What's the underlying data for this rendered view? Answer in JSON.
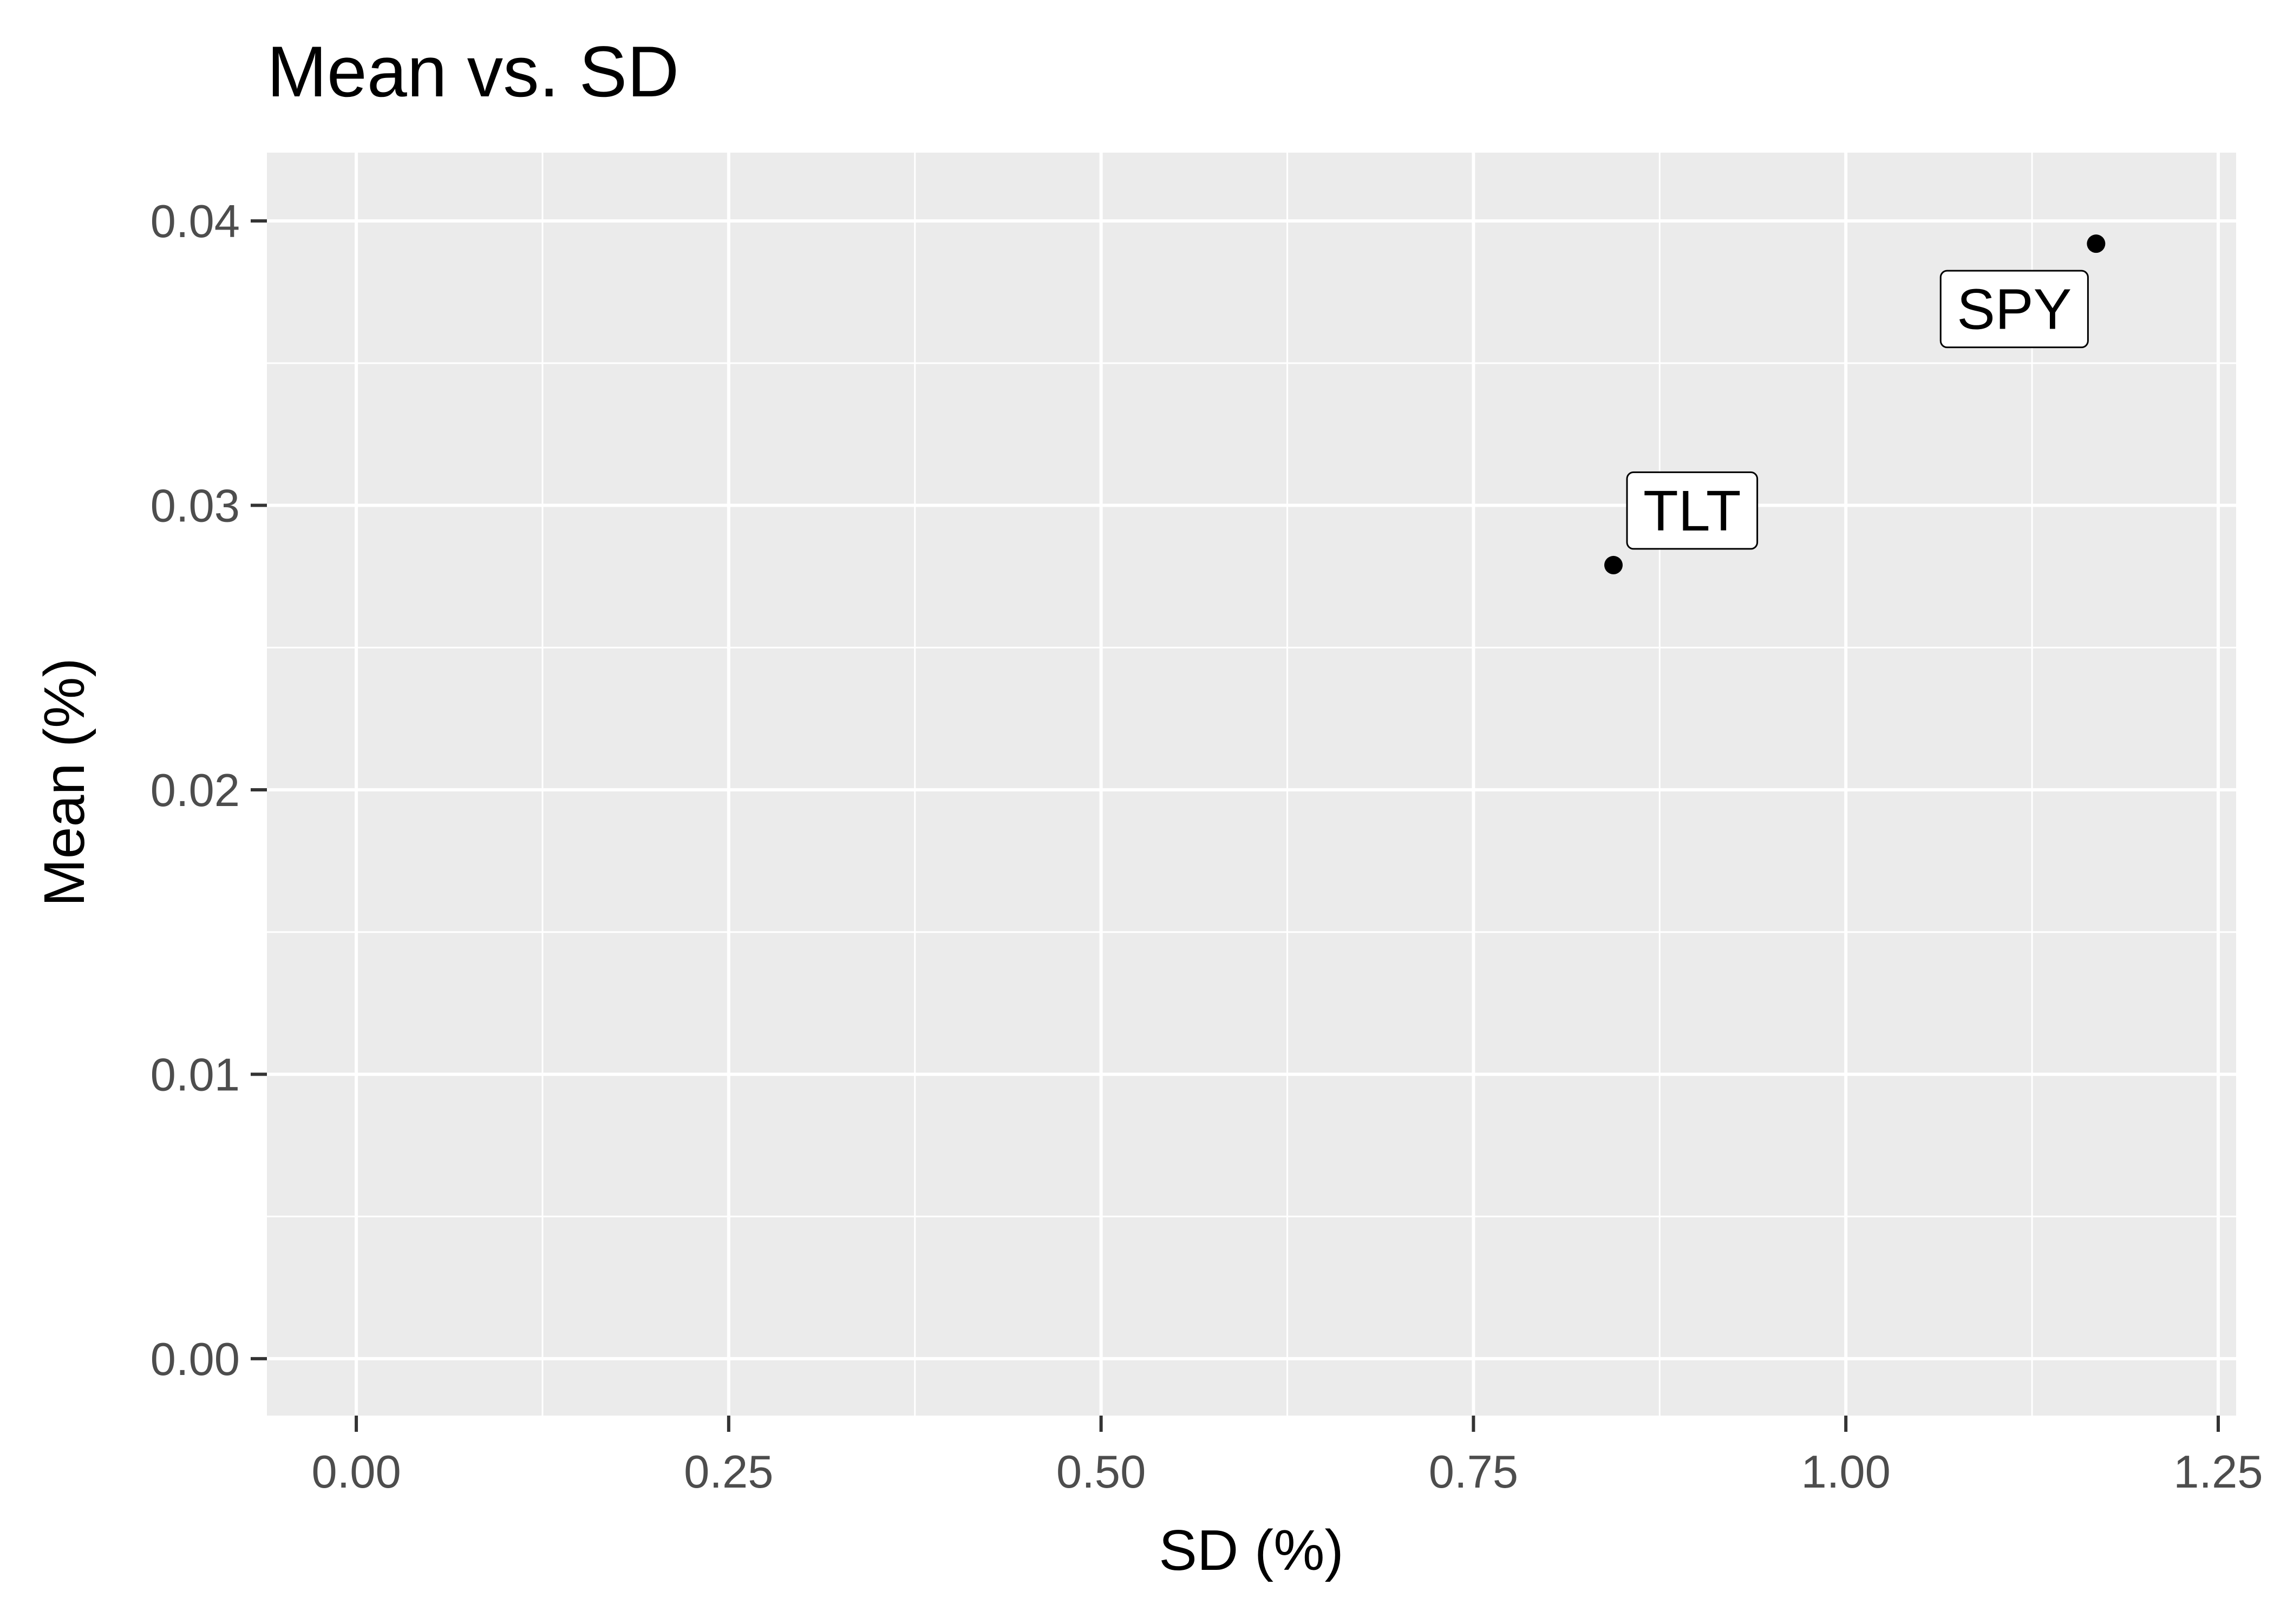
{
  "chart_data": {
    "type": "scatter",
    "title": "Mean vs. SD",
    "xlabel": "SD (%)",
    "ylabel": "Mean (%)",
    "xlim": [
      -0.06,
      1.262
    ],
    "ylim": [
      -0.002,
      0.0424
    ],
    "x_ticks": [
      0.0,
      0.25,
      0.5,
      0.75,
      1.0,
      1.25
    ],
    "x_tick_labels": [
      "0.00",
      "0.25",
      "0.50",
      "0.75",
      "1.00",
      "1.25"
    ],
    "y_ticks": [
      0.0,
      0.01,
      0.02,
      0.03,
      0.04
    ],
    "y_tick_labels": [
      "0.00",
      "0.01",
      "0.02",
      "0.03",
      "0.04"
    ],
    "x_minor_ticks": [
      0.125,
      0.375,
      0.625,
      0.875,
      1.125
    ],
    "y_minor_ticks": [
      0.005,
      0.015,
      0.025,
      0.035
    ],
    "grid": true,
    "panel_background": "#ebebeb",
    "grid_color": "#ffffff",
    "point_color": "#000000",
    "points": [
      {
        "label": "SPY",
        "x": 1.168,
        "y": 0.0392,
        "label_position": "below-left"
      },
      {
        "label": "TLT",
        "x": 0.844,
        "y": 0.0279,
        "label_position": "above-right"
      }
    ]
  }
}
